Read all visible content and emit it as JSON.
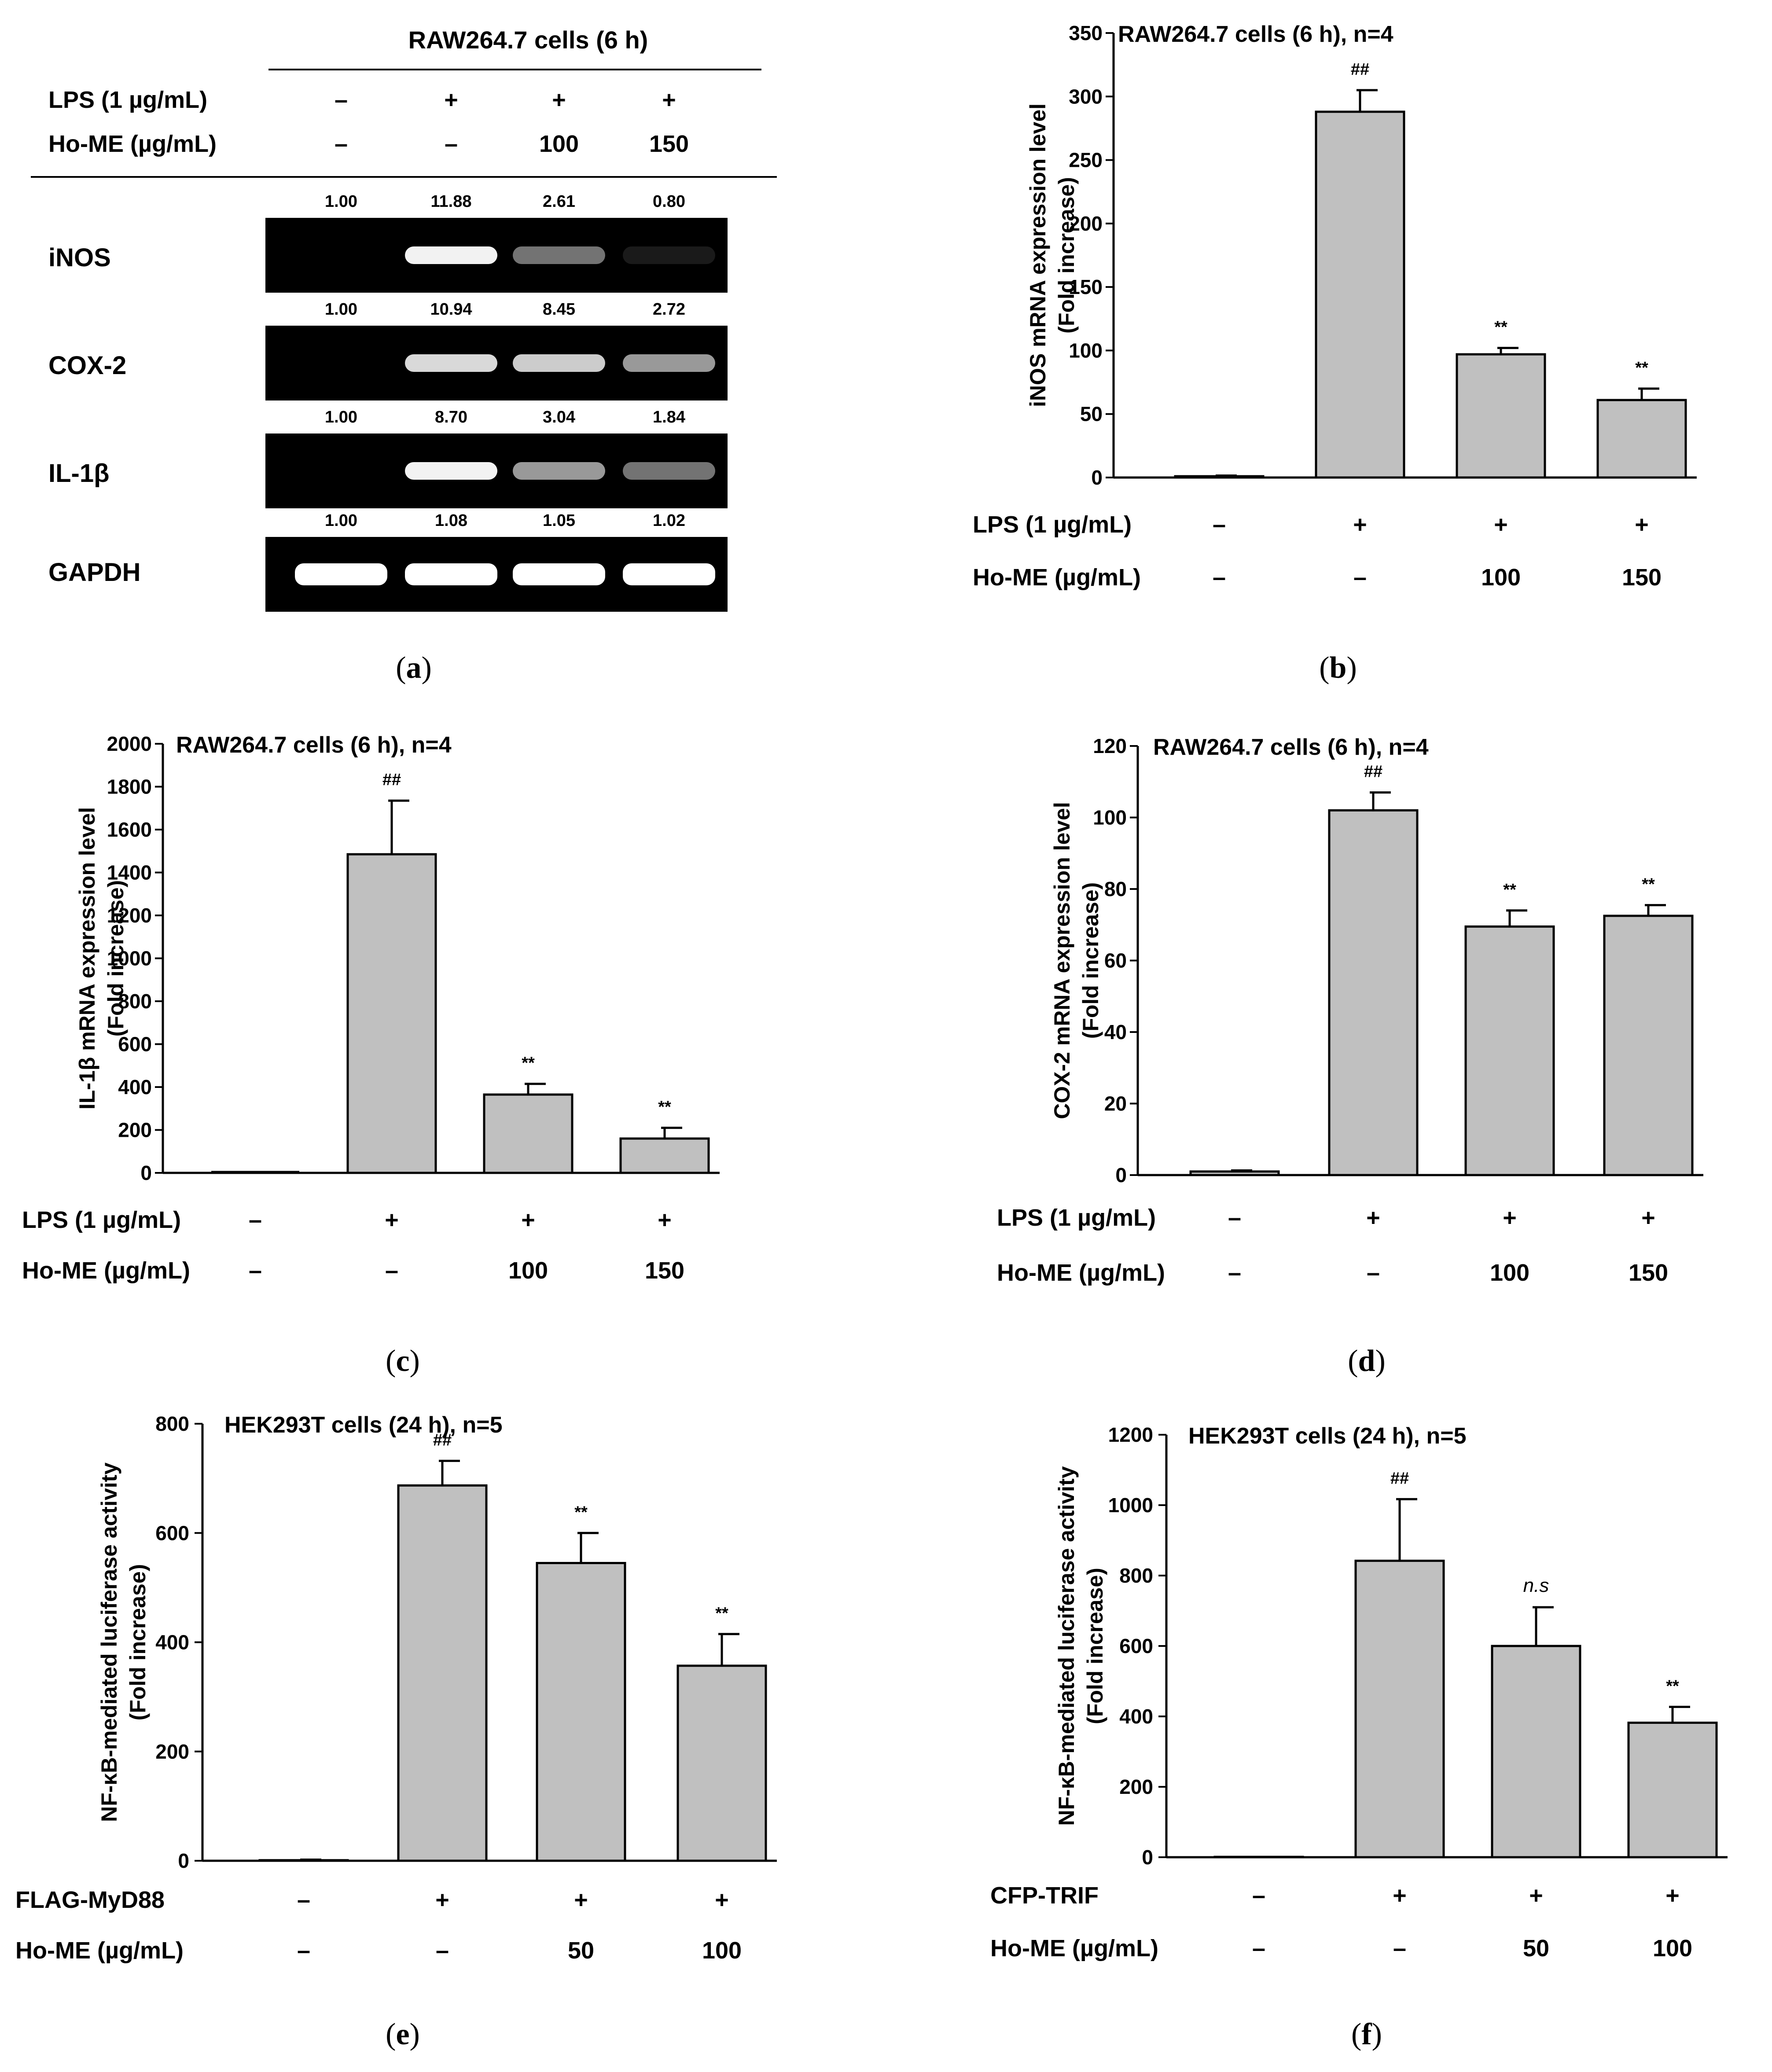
{
  "panel_a": {
    "header": "RAW264.7 cells (6 h)",
    "treatment_rows": [
      {
        "label": "LPS (1 µg/mL)",
        "values": [
          "–",
          "+",
          "+",
          "+"
        ]
      },
      {
        "label": "Ho-ME (µg/mL)",
        "values": [
          "–",
          "–",
          "100",
          "150"
        ]
      }
    ],
    "genes": [
      {
        "name": "iNOS",
        "ratios": [
          "1.00",
          "11.88",
          "2.61",
          "0.80"
        ],
        "intensity": [
          0.0,
          0.95,
          0.45,
          0.1
        ]
      },
      {
        "name": "COX-2",
        "ratios": [
          "1.00",
          "10.94",
          "8.45",
          "2.72"
        ],
        "intensity": [
          0.0,
          0.85,
          0.8,
          0.6
        ]
      },
      {
        "name": "IL-1β",
        "ratios": [
          "1.00",
          "8.70",
          "3.04",
          "1.84"
        ],
        "intensity": [
          0.0,
          0.95,
          0.6,
          0.45
        ]
      },
      {
        "name": "GAPDH",
        "ratios": [
          "1.00",
          "1.08",
          "1.05",
          "1.02"
        ],
        "intensity": [
          1.0,
          1.0,
          1.0,
          1.0
        ]
      }
    ],
    "caption": "a"
  },
  "chart_data": [
    {
      "type": "bar",
      "panel": "b",
      "caption": "b",
      "title": "RAW264.7 cells (6 h), n=4",
      "ylabel_lines": [
        "iNOS mRNA expression level",
        "(Fold increase)"
      ],
      "ylim": [
        0,
        350
      ],
      "yticks": [
        0,
        50,
        100,
        150,
        200,
        250,
        300,
        350
      ],
      "values": [
        1,
        288,
        97,
        61
      ],
      "errors": [
        0.5,
        17,
        5,
        9
      ],
      "annotations": [
        "",
        "##",
        "**",
        "**"
      ],
      "treatment_rows": [
        {
          "label": "LPS (1 µg/mL)",
          "values": [
            "–",
            "+",
            "+",
            "+"
          ]
        },
        {
          "label": "Ho-ME (µg/mL)",
          "values": [
            "–",
            "–",
            "100",
            "150"
          ]
        }
      ]
    },
    {
      "type": "bar",
      "panel": "c",
      "caption": "c",
      "title": "RAW264.7 cells (6 h), n=4",
      "ylabel_lines": [
        "IL-1β mRNA expression level",
        "(Fold increase)"
      ],
      "ylim": [
        0,
        2000
      ],
      "yticks": [
        0,
        200,
        400,
        600,
        800,
        1000,
        1200,
        1400,
        1600,
        1800,
        2000
      ],
      "values": [
        1,
        1485,
        365,
        160
      ],
      "errors": [
        0,
        250,
        50,
        50
      ],
      "annotations": [
        "",
        "##",
        "**",
        "**"
      ],
      "treatment_rows": [
        {
          "label": "LPS (1 µg/mL)",
          "values": [
            "–",
            "+",
            "+",
            "+"
          ]
        },
        {
          "label": "Ho-ME (µg/mL)",
          "values": [
            "–",
            "–",
            "100",
            "150"
          ]
        }
      ]
    },
    {
      "type": "bar",
      "panel": "d",
      "caption": "d",
      "title": "RAW264.7 cells (6 h), n=4",
      "ylabel_lines": [
        "COX-2 mRNA expression level",
        "(Fold increase)"
      ],
      "ylim": [
        0,
        120
      ],
      "yticks": [
        0,
        20,
        40,
        60,
        80,
        100,
        120
      ],
      "values": [
        1,
        102,
        69.5,
        72.5
      ],
      "errors": [
        0.3,
        5,
        4.5,
        3
      ],
      "annotations": [
        "",
        "##",
        "**",
        "**"
      ],
      "treatment_rows": [
        {
          "label": "LPS (1 µg/mL)",
          "values": [
            "–",
            "+",
            "+",
            "+"
          ]
        },
        {
          "label": "Ho-ME (µg/mL)",
          "values": [
            "–",
            "–",
            "100",
            "150"
          ]
        }
      ]
    },
    {
      "type": "bar",
      "panel": "e",
      "caption": "e",
      "title": "HEK293T cells (24 h), n=5",
      "ylabel_lines": [
        "NF-κB-mediated luciferase activity",
        "(Fold increase)"
      ],
      "ylim": [
        0,
        800
      ],
      "yticks": [
        0,
        200,
        400,
        600,
        800
      ],
      "values": [
        1,
        687,
        545,
        357
      ],
      "errors": [
        1,
        45,
        55,
        58
      ],
      "annotations": [
        "",
        "##",
        "**",
        "**"
      ],
      "treatment_rows": [
        {
          "label": "FLAG-MyD88",
          "values": [
            "–",
            "+",
            "+",
            "+"
          ]
        },
        {
          "label": "Ho-ME (µg/mL)",
          "values": [
            "–",
            "–",
            "50",
            "100"
          ]
        }
      ]
    },
    {
      "type": "bar",
      "panel": "f",
      "caption": "f",
      "title": "HEK293T cells (24 h), n=5",
      "ylabel_lines": [
        "NF-κB-mediated luciferase activity",
        "(Fold increase)"
      ],
      "ylim": [
        0,
        1200
      ],
      "yticks": [
        0,
        200,
        400,
        600,
        800,
        1000,
        1200
      ],
      "values": [
        1,
        842,
        600,
        382
      ],
      "errors": [
        0,
        175,
        110,
        45
      ],
      "annotations": [
        "",
        "##",
        "n.s",
        "**"
      ],
      "treatment_rows": [
        {
          "label": "CFP-TRIF",
          "values": [
            "–",
            "+",
            "+",
            "+"
          ]
        },
        {
          "label": "Ho-ME (µg/mL)",
          "values": [
            "–",
            "–",
            "50",
            "100"
          ]
        }
      ]
    }
  ]
}
